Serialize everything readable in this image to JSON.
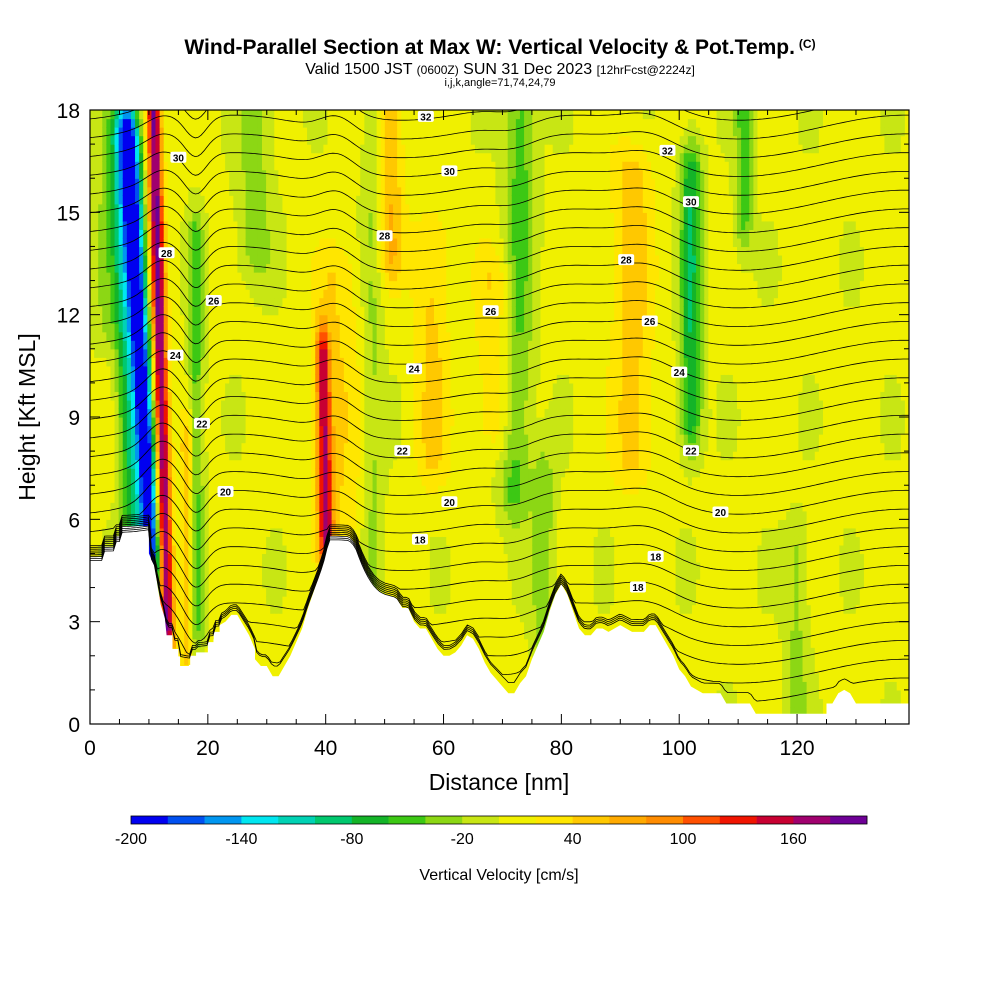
{
  "chart_data": {
    "type": "heatmap",
    "title": "Wind-Parallel Section at Max W: Vertical Velocity & Pot.Temp.",
    "title_mark": "(C)",
    "subtitle_valid": "Valid 1500 JST",
    "subtitle_utc": "(0600Z)",
    "subtitle_date": "SUN 31 Dec 2023",
    "subtitle_fcst": "[12hrFcst@2224z]",
    "subtitle_indices": "i,j,k,angle=71,74,24,79",
    "xlabel": "Distance [nm]",
    "ylabel": "Height [Kft MSL]",
    "xlim": [
      0,
      139
    ],
    "ylim": [
      0,
      18
    ],
    "x_ticks": [
      0,
      20,
      40,
      60,
      80,
      100,
      120
    ],
    "y_ticks": [
      0,
      3,
      6,
      9,
      12,
      15,
      18
    ],
    "colorbar": {
      "label": "Vertical Velocity [cm/s]",
      "range": [
        -200,
        200
      ],
      "step": 20,
      "tick_labels": [
        "-200",
        "-140",
        "-80",
        "-20",
        "40",
        "100",
        "160"
      ],
      "colors": [
        "#0000f0",
        "#0050f0",
        "#0096f0",
        "#00e6f0",
        "#00d2b4",
        "#00c86e",
        "#14b428",
        "#3cc814",
        "#8cd714",
        "#c8e614",
        "#f0f000",
        "#ffe600",
        "#ffc800",
        "#ffaa00",
        "#ff8c00",
        "#ff5000",
        "#f01400",
        "#c80032",
        "#a0006e",
        "#6e0096"
      ]
    },
    "potential_temperature_labels": [
      {
        "x": 15,
        "y": 16.6,
        "value": "30"
      },
      {
        "x": 13,
        "y": 13.8,
        "value": "28"
      },
      {
        "x": 21,
        "y": 12.4,
        "value": "26"
      },
      {
        "x": 14.5,
        "y": 10.8,
        "value": "24"
      },
      {
        "x": 19,
        "y": 8.8,
        "value": "22"
      },
      {
        "x": 23,
        "y": 6.8,
        "value": "20"
      },
      {
        "x": 57,
        "y": 17.8,
        "value": "32"
      },
      {
        "x": 61,
        "y": 16.2,
        "value": "30"
      },
      {
        "x": 50,
        "y": 14.3,
        "value": "28"
      },
      {
        "x": 68,
        "y": 12.1,
        "value": "26"
      },
      {
        "x": 55,
        "y": 10.4,
        "value": "24"
      },
      {
        "x": 53,
        "y": 8.0,
        "value": "22"
      },
      {
        "x": 61,
        "y": 6.5,
        "value": "20"
      },
      {
        "x": 56,
        "y": 5.4,
        "value": "18"
      },
      {
        "x": 98,
        "y": 16.8,
        "value": "32"
      },
      {
        "x": 102,
        "y": 15.3,
        "value": "30"
      },
      {
        "x": 91,
        "y": 13.6,
        "value": "28"
      },
      {
        "x": 95,
        "y": 11.8,
        "value": "26"
      },
      {
        "x": 100,
        "y": 10.3,
        "value": "24"
      },
      {
        "x": 102,
        "y": 8.0,
        "value": "22"
      },
      {
        "x": 107,
        "y": 6.2,
        "value": "20"
      },
      {
        "x": 96,
        "y": 4.9,
        "value": "18"
      },
      {
        "x": 93,
        "y": 4.0,
        "value": "18"
      }
    ]
  }
}
